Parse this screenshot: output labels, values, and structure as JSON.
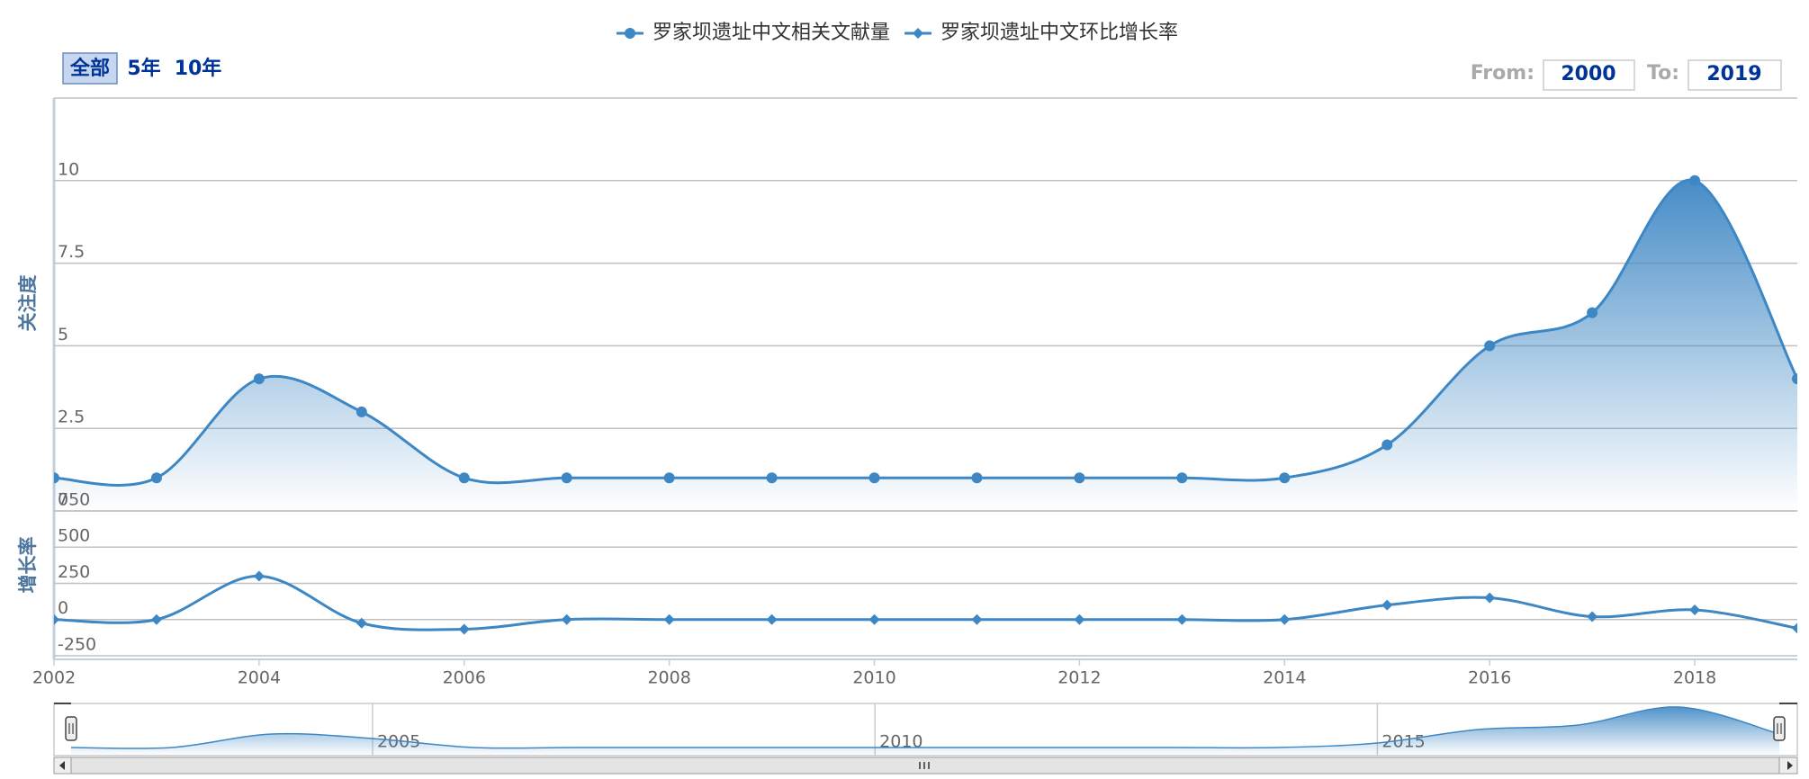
{
  "chart_data": {
    "type": "line",
    "x": [
      2002,
      2003,
      2004,
      2005,
      2006,
      2007,
      2008,
      2009,
      2010,
      2011,
      2012,
      2013,
      2014,
      2015,
      2016,
      2017,
      2018,
      2019
    ],
    "xlim": [
      2002,
      2019
    ],
    "xticks": [
      2002,
      2004,
      2006,
      2008,
      2010,
      2012,
      2014,
      2016,
      2018
    ],
    "series": [
      {
        "name": "罗家坝遗址中文相关文献量",
        "color": "#3d87c4",
        "axis": "y",
        "values": [
          1,
          1,
          4,
          3,
          1,
          1,
          1,
          1,
          1,
          1,
          1,
          1,
          1,
          2,
          5,
          6,
          10,
          4
        ]
      },
      {
        "name": "罗家坝遗址中文环比增长率",
        "color": "#3d87c4",
        "axis": "y2",
        "values": [
          0,
          0,
          300,
          -25,
          -66.7,
          0,
          0,
          0,
          0,
          0,
          0,
          0,
          0,
          100,
          150,
          20,
          66.7,
          -60
        ]
      }
    ],
    "ylabel": "关注度",
    "ylim": [
      0,
      12.5
    ],
    "yticks": [
      0,
      2.5,
      5,
      7.5,
      10
    ],
    "y2label": "增长率",
    "y2lim": [
      -275,
      750
    ],
    "y2ticks": [
      -250,
      0,
      250,
      500,
      750
    ],
    "grid": true,
    "navigator_xticks": [
      2005,
      2010,
      2015
    ],
    "range_selector": {
      "buttons": [
        "全部",
        "5年",
        "10年"
      ],
      "from_label": "From:",
      "from": 2000,
      "to_label": "To:",
      "to": 2019
    }
  }
}
